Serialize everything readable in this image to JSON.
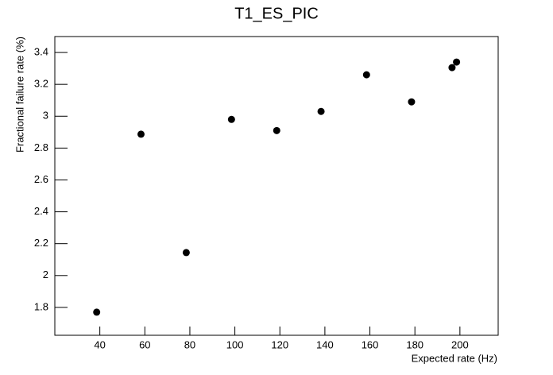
{
  "chart_data": {
    "type": "scatter",
    "title": "T1_ES_PIC",
    "x_label": "Expected rate (Hz)",
    "y_label": "Fractional failure rate (%)",
    "x": [
      38.6,
      58.3,
      78.4,
      98.5,
      118.6,
      138.3,
      158.5,
      178.5,
      196.5,
      198.5
    ],
    "values": [
      1.77,
      2.887,
      2.144,
      2.98,
      2.91,
      3.03,
      3.26,
      3.09,
      3.305,
      3.34
    ],
    "color": "#000000",
    "xlim": [
      20,
      217
    ],
    "xticks": [
      40,
      60,
      80,
      100,
      120,
      140,
      160,
      180,
      200
    ],
    "ylim": [
      1.625,
      3.5
    ],
    "yticks": [
      1.8,
      2,
      2.2,
      2.4,
      2.6,
      2.8,
      3,
      3.2,
      3.4
    ]
  }
}
